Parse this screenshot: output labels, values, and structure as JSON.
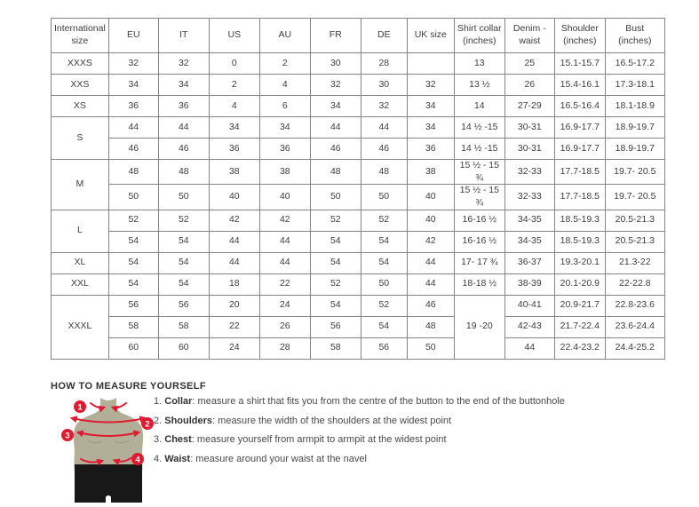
{
  "colors": {
    "accent_red": "#e01a31",
    "torso_tan": "#b2af99",
    "torso_shadow": "#9d9a83",
    "shorts_black": "#181818",
    "table_border": "#858585",
    "text": "#3d3d3d"
  },
  "table": {
    "headers": [
      "International size",
      "EU",
      "IT",
      "US",
      "AU",
      "FR",
      "DE",
      "UK size",
      "Shirt collar (inches)",
      "Denim - waist",
      "Shoulder (inches)",
      "Bust (inches)"
    ],
    "rows": [
      {
        "cells": [
          "XXXS",
          "32",
          "32",
          "0",
          "2",
          "30",
          "28",
          "",
          "13",
          "25",
          "15.1-15.7",
          "16.5-17.2"
        ]
      },
      {
        "cells": [
          "XXS",
          "34",
          "34",
          "2",
          "4",
          "32",
          "30",
          "32",
          "13 ½",
          "26",
          "15.4-16.1",
          "17.3-18.1"
        ]
      },
      {
        "cells": [
          "XS",
          "36",
          "36",
          "4",
          "6",
          "34",
          "32",
          "34",
          "14",
          "27-29",
          "16.5-16.4",
          "18.1-18.9"
        ]
      },
      {
        "cells": [
          {
            "t": "S",
            "rs": 2
          },
          "44",
          "44",
          "34",
          "34",
          "44",
          "44",
          "34",
          "14 ½ -15",
          "30-31",
          "16.9-17.7",
          "18.9-19.7"
        ]
      },
      {
        "cells": [
          "46",
          "46",
          "36",
          "36",
          "46",
          "46",
          "36",
          "14 ½ -15",
          "30-31",
          "16.9-17.7",
          "18.9-19.7"
        ]
      },
      {
        "cells": [
          {
            "t": "M",
            "rs": 2
          },
          "48",
          "48",
          "38",
          "38",
          "48",
          "48",
          "38",
          "15 ½ - 15 ¾",
          "32-33",
          "17.7-18.5",
          "19.7- 20.5"
        ]
      },
      {
        "cells": [
          "50",
          "50",
          "40",
          "40",
          "50",
          "50",
          "40",
          "15 ½ - 15 ¾",
          "32-33",
          "17.7-18.5",
          "19.7- 20.5"
        ]
      },
      {
        "cells": [
          {
            "t": "L",
            "rs": 2
          },
          "52",
          "52",
          "42",
          "42",
          "52",
          "52",
          "40",
          "16-16 ½",
          "34-35",
          "18.5-19.3",
          "20.5-21.3"
        ]
      },
      {
        "cells": [
          "54",
          "54",
          "44",
          "44",
          "54",
          "54",
          "42",
          "16-16 ½",
          "34-35",
          "18.5-19.3",
          "20.5-21.3"
        ]
      },
      {
        "cells": [
          "XL",
          "54",
          "54",
          "44",
          "44",
          "54",
          "54",
          "44",
          "17- 17 ¾",
          "36-37",
          "19.3-20.1",
          "21.3-22"
        ]
      },
      {
        "cells": [
          "XXL",
          "54",
          "54",
          "18",
          "22",
          "52",
          "50",
          "44",
          "18-18 ½",
          "38-39",
          "20.1-20.9",
          "22-22.8"
        ]
      },
      {
        "cells": [
          {
            "t": "XXXL",
            "rs": 3
          },
          "56",
          "56",
          "20",
          "24",
          "54",
          "52",
          "46",
          {
            "t": "19 -20",
            "rs": 3
          },
          "40-41",
          "20.9-21.7",
          "22.8-23.6"
        ]
      },
      {
        "cells": [
          "58",
          "58",
          "22",
          "26",
          "56",
          "54",
          "48",
          "42-43",
          "21.7-22.4",
          "23.6-24.4"
        ]
      },
      {
        "cells": [
          "60",
          "60",
          "24",
          "28",
          "58",
          "56",
          "50",
          "44",
          "22.4-23.2",
          "24.4-25.2"
        ]
      }
    ]
  },
  "measure": {
    "heading": "HOW TO MEASURE YOURSELF",
    "items": [
      {
        "num": "1.",
        "label": "Collar",
        "rest": ": measure a shirt that fits you from the centre of the button to the end of the buttonhole"
      },
      {
        "num": "2.",
        "label": "Shoulders",
        "rest": ": measure the width of the shoulders at the widest point"
      },
      {
        "num": "3.",
        "label": "Chest",
        "rest": ": measure yourself from armpit to armpit at the widest point"
      },
      {
        "num": "4.",
        "label": "Waist",
        "rest": ": measure around your waist at the navel"
      }
    ],
    "figure_badges": [
      "1",
      "2",
      "3",
      "4"
    ]
  }
}
